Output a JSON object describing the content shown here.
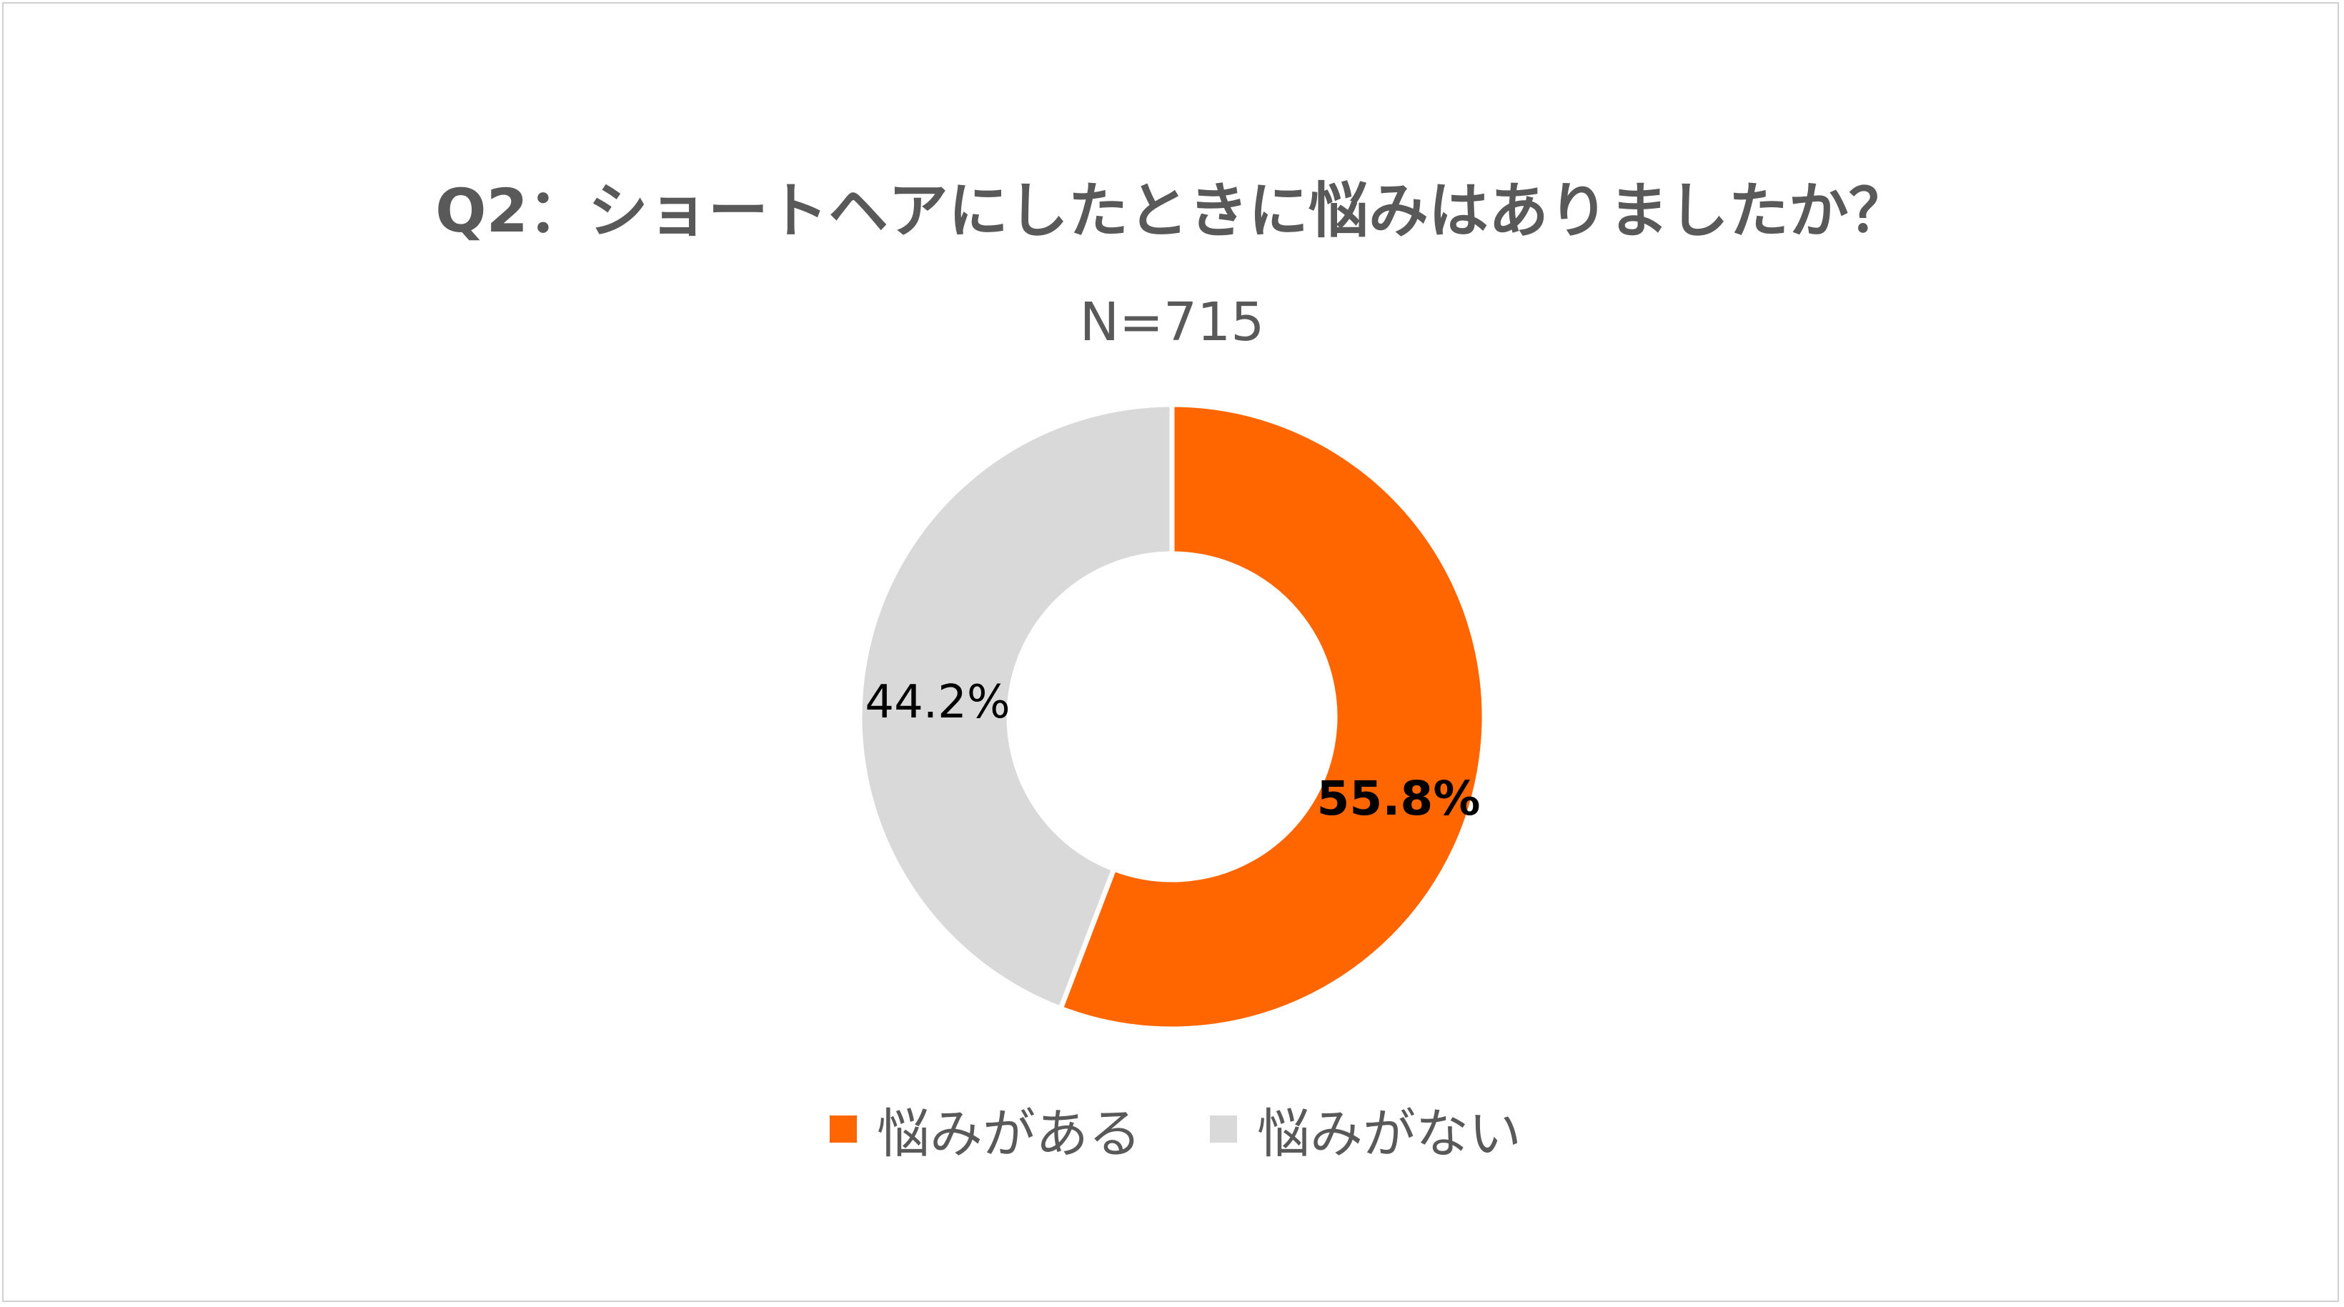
{
  "chart_data": {
    "type": "pie",
    "title": "Q2：ショートヘアにしたときに悩みはありましたか？",
    "subtitle": "N=715",
    "donut": true,
    "categories": [
      "悩みがある",
      "悩みがない"
    ],
    "values": [
      55.8,
      44.2
    ],
    "data_labels": [
      "55.8%",
      "44.2%"
    ],
    "colors": [
      "#FF6600",
      "#D9D9D9"
    ],
    "legend_position": "bottom"
  }
}
